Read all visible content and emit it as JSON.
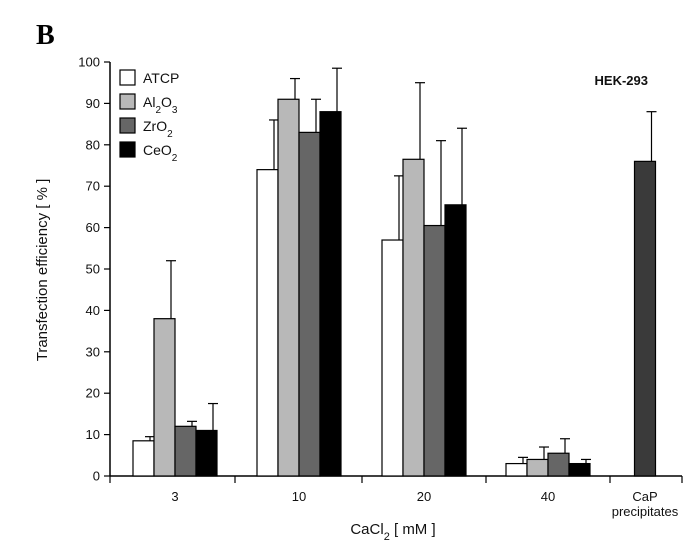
{
  "panel_label": "B",
  "annotation": "HEK-293",
  "chart_data": {
    "type": "bar",
    "categories": [
      "3",
      "10",
      "20",
      "40",
      "CaP\nprecipitates"
    ],
    "category_labels": [
      [
        "3"
      ],
      [
        "10"
      ],
      [
        "20"
      ],
      [
        "40"
      ],
      [
        "CaP",
        "precipitates"
      ]
    ],
    "ylabel": "Transfection efficiency  [ % ]",
    "xlabel": {
      "main": "CaCl",
      "sub": "2",
      "rest": " [ mM ]"
    },
    "ylim": [
      0,
      100
    ],
    "yticks": [
      0,
      10,
      20,
      30,
      40,
      50,
      60,
      70,
      80,
      90,
      100
    ],
    "grid": false,
    "legend_position": "top-left",
    "series": [
      {
        "name": "ATCP",
        "label_parts": [
          {
            "t": "ATCP"
          }
        ],
        "color": "#ffffff",
        "values": [
          8.5,
          74,
          57,
          3,
          null
        ],
        "errors": [
          1,
          12,
          15.5,
          1.5,
          null
        ]
      },
      {
        "name": "Al2O3",
        "label_parts": [
          {
            "t": "Al"
          },
          {
            "t": "2",
            "sub": true
          },
          {
            "t": "O"
          },
          {
            "t": "3",
            "sub": true
          }
        ],
        "color": "#b8b8b8",
        "values": [
          38,
          91,
          76.5,
          4,
          null
        ],
        "errors": [
          14,
          5,
          18.5,
          3,
          null
        ]
      },
      {
        "name": "ZrO2",
        "label_parts": [
          {
            "t": "ZrO"
          },
          {
            "t": "2",
            "sub": true
          }
        ],
        "color": "#666666",
        "values": [
          12,
          83,
          60.5,
          5.5,
          null
        ],
        "errors": [
          1.2,
          8,
          20.5,
          3.5,
          null
        ]
      },
      {
        "name": "CeO2",
        "label_parts": [
          {
            "t": "CeO"
          },
          {
            "t": "2",
            "sub": true
          }
        ],
        "color": "#000000",
        "values": [
          11,
          88,
          65.5,
          3,
          null
        ],
        "errors": [
          6.5,
          10.5,
          18.5,
          1,
          null
        ]
      }
    ],
    "extra_bar": {
      "category_index": 4,
      "color": "#3a3a3a",
      "value": 76,
      "error": 12
    }
  }
}
